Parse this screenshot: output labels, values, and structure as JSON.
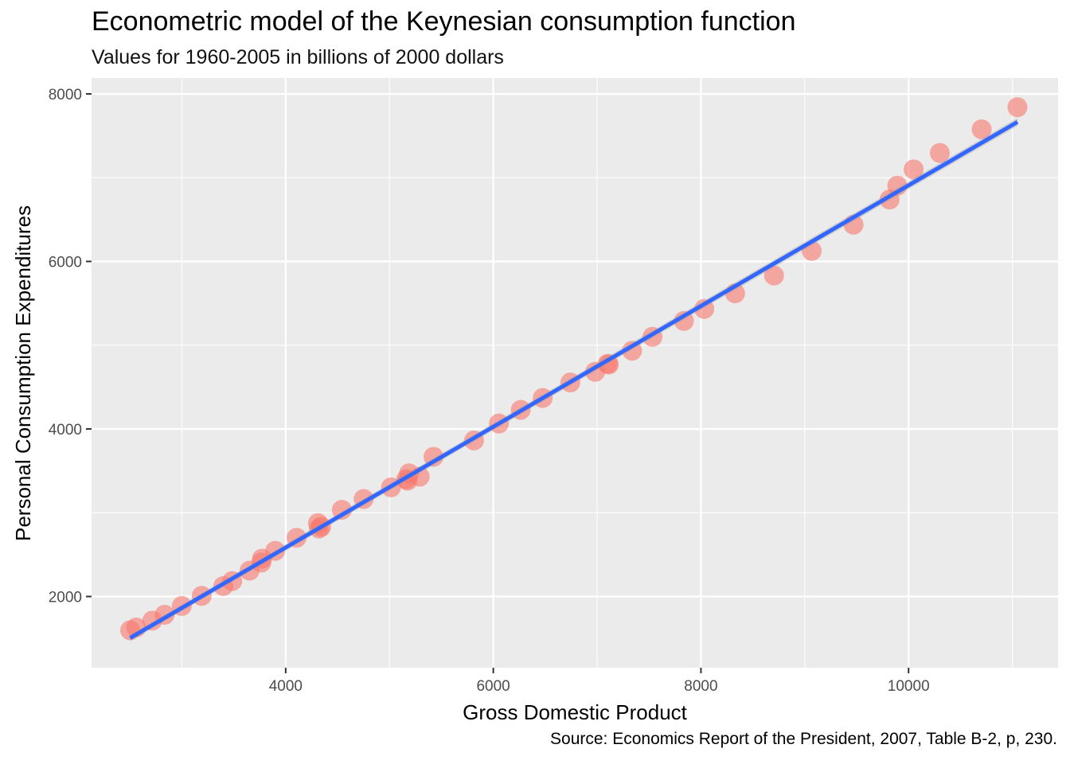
{
  "chart_data": {
    "type": "scatter",
    "title": "Econometric model of the Keynesian consumption function",
    "subtitle": "Values for 1960-2005 in billions of 2000 dollars",
    "caption": "Source: Economics Report of the President, 2007, Table B-2, p, 230.",
    "xlabel": "Gross Domestic Product",
    "ylabel": "Personal Consumption Expenditures",
    "xlim": [
      2130,
      11440
    ],
    "ylim": [
      1150,
      8190
    ],
    "x_ticks": [
      4000,
      6000,
      8000,
      10000
    ],
    "y_ticks": [
      2000,
      4000,
      6000,
      8000
    ],
    "grid": true,
    "point_color": "#f8766d",
    "line_color": "#3366ff",
    "panel_color": "#ebebeb",
    "points": [
      {
        "x": 2502,
        "y": 1597
      },
      {
        "x": 2560,
        "y": 1630
      },
      {
        "x": 2715,
        "y": 1712
      },
      {
        "x": 2834,
        "y": 1782
      },
      {
        "x": 2999,
        "y": 1887
      },
      {
        "x": 3191,
        "y": 2007
      },
      {
        "x": 3399,
        "y": 2125
      },
      {
        "x": 3485,
        "y": 2184
      },
      {
        "x": 3652,
        "y": 2309
      },
      {
        "x": 3765,
        "y": 2405
      },
      {
        "x": 3772,
        "y": 2452
      },
      {
        "x": 3899,
        "y": 2545
      },
      {
        "x": 4105,
        "y": 2701
      },
      {
        "x": 4342,
        "y": 2833
      },
      {
        "x": 4320,
        "y": 2812
      },
      {
        "x": 4311,
        "y": 2876
      },
      {
        "x": 4541,
        "y": 3035
      },
      {
        "x": 4751,
        "y": 3164
      },
      {
        "x": 5015,
        "y": 3303
      },
      {
        "x": 5174,
        "y": 3383
      },
      {
        "x": 5161,
        "y": 3401
      },
      {
        "x": 5291,
        "y": 3431
      },
      {
        "x": 5189,
        "y": 3470
      },
      {
        "x": 5424,
        "y": 3668
      },
      {
        "x": 5814,
        "y": 3863
      },
      {
        "x": 6054,
        "y": 4065
      },
      {
        "x": 6264,
        "y": 4228
      },
      {
        "x": 6476,
        "y": 4370
      },
      {
        "x": 6742,
        "y": 4555
      },
      {
        "x": 6981,
        "y": 4682
      },
      {
        "x": 7113,
        "y": 4770
      },
      {
        "x": 7101,
        "y": 4778
      },
      {
        "x": 7337,
        "y": 4934
      },
      {
        "x": 7533,
        "y": 5100
      },
      {
        "x": 7836,
        "y": 5290
      },
      {
        "x": 8032,
        "y": 5433
      },
      {
        "x": 8329,
        "y": 5619
      },
      {
        "x": 8704,
        "y": 5832
      },
      {
        "x": 9067,
        "y": 6126
      },
      {
        "x": 9470,
        "y": 6439
      },
      {
        "x": 9817,
        "y": 6739
      },
      {
        "x": 9891,
        "y": 6904
      },
      {
        "x": 10049,
        "y": 7099
      },
      {
        "x": 10301,
        "y": 7295
      },
      {
        "x": 10704,
        "y": 7577
      },
      {
        "x": 11049,
        "y": 7841
      }
    ],
    "fit_line": {
      "x": [
        2502,
        11049
      ],
      "y": [
        1505,
        7665
      ]
    }
  }
}
